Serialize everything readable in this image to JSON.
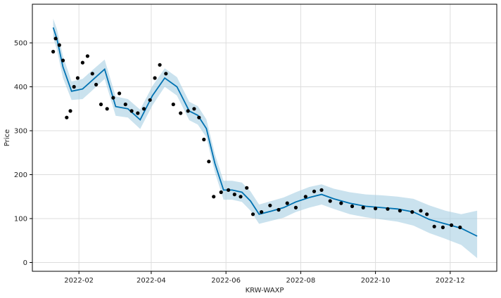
{
  "chart_data": {
    "type": "line",
    "title": "",
    "xlabel": "KRW-WAXP",
    "ylabel": "Price",
    "x_range": [
      "2021-12-25",
      "2023-01-08"
    ],
    "ylim": [
      -20,
      588
    ],
    "grid": true,
    "x_ticks": [
      "2022-02",
      "2022-04",
      "2022-06",
      "2022-08",
      "2022-10",
      "2022-12"
    ],
    "y_ticks": [
      0,
      100,
      200,
      300,
      400,
      500
    ],
    "series": [
      {
        "role": "observed",
        "style": "points",
        "color": "#000000",
        "x": [
          "2022-01-11",
          "2022-01-13",
          "2022-01-16",
          "2022-01-19",
          "2022-01-22",
          "2022-01-25",
          "2022-01-28",
          "2022-01-31",
          "2022-02-04",
          "2022-02-08",
          "2022-02-12",
          "2022-02-15",
          "2022-02-19",
          "2022-02-24",
          "2022-03-01",
          "2022-03-06",
          "2022-03-11",
          "2022-03-16",
          "2022-03-21",
          "2022-03-26",
          "2022-03-31",
          "2022-04-04",
          "2022-04-08",
          "2022-04-13",
          "2022-04-19",
          "2022-04-25",
          "2022-05-01",
          "2022-05-06",
          "2022-05-10",
          "2022-05-14",
          "2022-05-18",
          "2022-05-22",
          "2022-05-28",
          "2022-06-03",
          "2022-06-08",
          "2022-06-13",
          "2022-06-18",
          "2022-06-23",
          "2022-06-30",
          "2022-07-07",
          "2022-07-14",
          "2022-07-21",
          "2022-07-28",
          "2022-08-05",
          "2022-08-12",
          "2022-08-18",
          "2022-08-25",
          "2022-09-03",
          "2022-09-12",
          "2022-09-21",
          "2022-10-01",
          "2022-10-11",
          "2022-10-21",
          "2022-10-31",
          "2022-11-07",
          "2022-11-12",
          "2022-11-18",
          "2022-11-25",
          "2022-12-02",
          "2022-12-09"
        ],
        "values": [
          480,
          510,
          495,
          460,
          330,
          345,
          400,
          420,
          455,
          470,
          430,
          405,
          360,
          350,
          375,
          385,
          360,
          345,
          340,
          350,
          370,
          420,
          450,
          430,
          360,
          340,
          345,
          350,
          330,
          280,
          230,
          150,
          160,
          165,
          155,
          150,
          170,
          110,
          115,
          130,
          120,
          135,
          125,
          150,
          162,
          165,
          140,
          135,
          128,
          125,
          123,
          122,
          118,
          115,
          118,
          110,
          82,
          80,
          85,
          80
        ]
      },
      {
        "role": "forecast",
        "style": "line",
        "color": "#0072b2",
        "x": [
          "2022-01-11",
          "2022-01-14",
          "2022-01-19",
          "2022-01-26",
          "2022-02-04",
          "2022-02-12",
          "2022-02-22",
          "2022-03-03",
          "2022-03-13",
          "2022-03-23",
          "2022-04-02",
          "2022-04-12",
          "2022-04-22",
          "2022-05-02",
          "2022-05-09",
          "2022-05-16",
          "2022-05-23",
          "2022-05-30",
          "2022-06-06",
          "2022-06-14",
          "2022-06-21",
          "2022-06-28",
          "2022-07-08",
          "2022-07-18",
          "2022-07-28",
          "2022-08-08",
          "2022-08-18",
          "2022-08-28",
          "2022-09-10",
          "2022-09-23",
          "2022-10-06",
          "2022-10-19",
          "2022-11-01",
          "2022-11-14",
          "2022-11-27",
          "2022-12-10",
          "2022-12-23"
        ],
        "values": [
          535,
          510,
          445,
          390,
          395,
          415,
          440,
          355,
          350,
          325,
          380,
          420,
          400,
          345,
          335,
          305,
          225,
          165,
          165,
          160,
          140,
          110,
          117,
          125,
          138,
          148,
          155,
          145,
          135,
          128,
          125,
          122,
          115,
          98,
          88,
          78,
          60
        ]
      }
    ],
    "uncertainty_band": {
      "color": "#a6cee3",
      "x": [
        "2022-01-11",
        "2022-01-14",
        "2022-01-19",
        "2022-01-26",
        "2022-02-04",
        "2022-02-12",
        "2022-02-22",
        "2022-03-03",
        "2022-03-13",
        "2022-03-23",
        "2022-04-02",
        "2022-04-12",
        "2022-04-22",
        "2022-05-02",
        "2022-05-09",
        "2022-05-16",
        "2022-05-23",
        "2022-05-30",
        "2022-06-06",
        "2022-06-14",
        "2022-06-21",
        "2022-06-28",
        "2022-07-08",
        "2022-07-18",
        "2022-07-28",
        "2022-08-08",
        "2022-08-18",
        "2022-08-28",
        "2022-09-10",
        "2022-09-23",
        "2022-10-06",
        "2022-10-19",
        "2022-11-01",
        "2022-11-14",
        "2022-11-27",
        "2022-12-10",
        "2022-12-23"
      ],
      "lower": [
        512,
        485,
        420,
        370,
        372,
        392,
        418,
        334,
        330,
        304,
        358,
        400,
        380,
        324,
        314,
        285,
        205,
        143,
        143,
        138,
        118,
        88,
        95,
        102,
        115,
        125,
        132,
        122,
        110,
        103,
        98,
        93,
        84,
        67,
        54,
        40,
        10
      ],
      "upper": [
        555,
        532,
        470,
        412,
        418,
        438,
        462,
        378,
        372,
        348,
        402,
        442,
        422,
        366,
        356,
        326,
        246,
        186,
        186,
        182,
        162,
        132,
        140,
        148,
        160,
        172,
        178,
        168,
        160,
        155,
        153,
        150,
        145,
        130,
        118,
        110,
        118
      ]
    }
  }
}
